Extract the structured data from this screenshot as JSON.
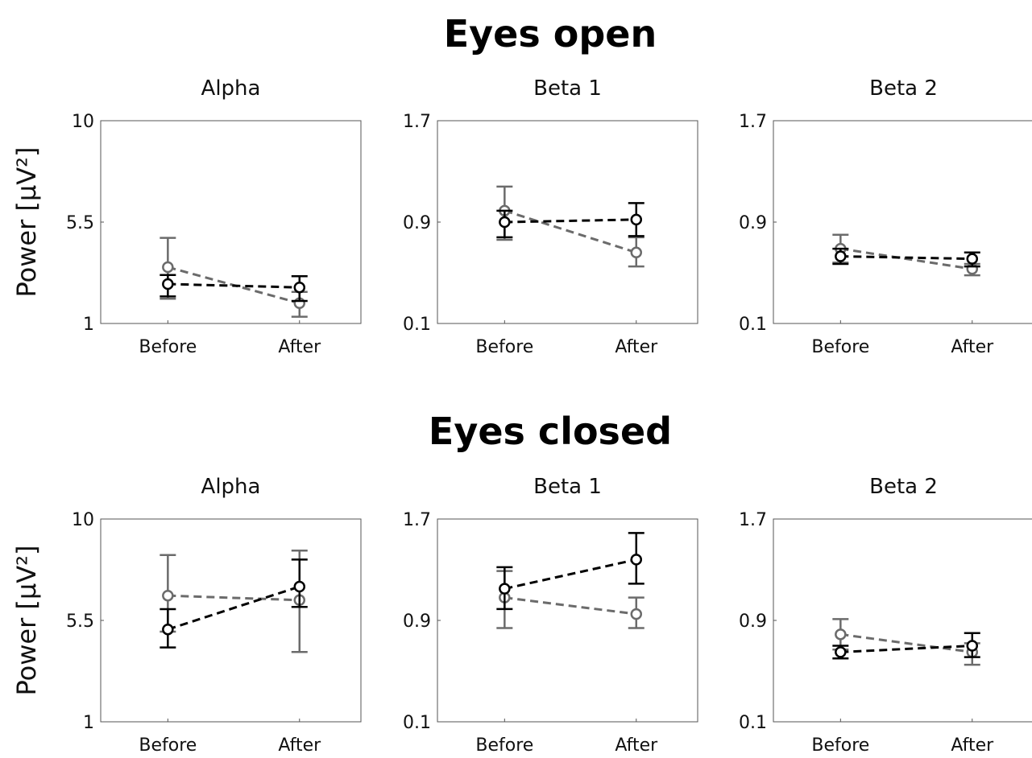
{
  "sections": [
    {
      "title": "Eyes open"
    },
    {
      "title": "Eyes closed"
    }
  ],
  "colors": {
    "group_a": "#000000",
    "group_b": "#6b6b6b"
  },
  "chart_data": [
    {
      "type": "line",
      "section": "Eyes open",
      "title": "Alpha",
      "ylabel": "Power [μV²]",
      "categories": [
        "Before",
        "After"
      ],
      "ylim": [
        1,
        10
      ],
      "yticks": [
        1,
        5.5,
        10
      ],
      "ytick_labels": [
        "1",
        "5.5",
        "10"
      ],
      "series": [
        {
          "color": "group_a",
          "values": [
            2.75,
            2.6
          ],
          "err_low": [
            2.2,
            2.0
          ],
          "err_high": [
            3.15,
            3.1
          ]
        },
        {
          "color": "group_b",
          "values": [
            3.5,
            1.9
          ],
          "err_low": [
            2.1,
            1.3
          ],
          "err_high": [
            4.8,
            2.4
          ]
        }
      ]
    },
    {
      "type": "line",
      "section": "Eyes open",
      "title": "Beta 1",
      "ylabel": "",
      "categories": [
        "Before",
        "After"
      ],
      "ylim": [
        0.1,
        1.7
      ],
      "yticks": [
        0.1,
        0.9,
        1.7
      ],
      "ytick_labels": [
        "0.1",
        "0.9",
        "1.7"
      ],
      "series": [
        {
          "color": "group_a",
          "values": [
            0.9,
            0.92
          ],
          "err_low": [
            0.78,
            0.79
          ],
          "err_high": [
            0.99,
            1.05
          ]
        },
        {
          "color": "group_b",
          "values": [
            0.99,
            0.66
          ],
          "err_low": [
            0.76,
            0.55
          ],
          "err_high": [
            1.18,
            0.78
          ]
        }
      ]
    },
    {
      "type": "line",
      "section": "Eyes open",
      "title": "Beta 2",
      "ylabel": "",
      "categories": [
        "Before",
        "After"
      ],
      "ylim": [
        0.1,
        1.7
      ],
      "yticks": [
        0.1,
        0.9,
        1.7
      ],
      "ytick_labels": [
        "0.1",
        "0.9",
        "1.7"
      ],
      "series": [
        {
          "color": "group_a",
          "values": [
            0.63,
            0.61
          ],
          "err_low": [
            0.57,
            0.55
          ],
          "err_high": [
            0.69,
            0.66
          ]
        },
        {
          "color": "group_b",
          "values": [
            0.69,
            0.53
          ],
          "err_low": [
            0.58,
            0.48
          ],
          "err_high": [
            0.8,
            0.57
          ]
        }
      ]
    },
    {
      "type": "line",
      "section": "Eyes closed",
      "title": "Alpha",
      "ylabel": "Power [μV²]",
      "categories": [
        "Before",
        "After"
      ],
      "ylim": [
        1,
        10
      ],
      "yticks": [
        1,
        5.5,
        10
      ],
      "ytick_labels": [
        "1",
        "5.5",
        "10"
      ],
      "series": [
        {
          "color": "group_a",
          "values": [
            5.1,
            7.0
          ],
          "err_low": [
            4.3,
            6.1
          ],
          "err_high": [
            6.0,
            8.2
          ]
        },
        {
          "color": "group_b",
          "values": [
            6.6,
            6.4
          ],
          "err_low": [
            5.0,
            4.1
          ],
          "err_high": [
            8.4,
            8.6
          ]
        }
      ]
    },
    {
      "type": "line",
      "section": "Eyes closed",
      "title": "Beta 1",
      "ylabel": "",
      "categories": [
        "Before",
        "After"
      ],
      "ylim": [
        0.1,
        1.7
      ],
      "yticks": [
        0.1,
        0.9,
        1.7
      ],
      "ytick_labels": [
        "0.1",
        "0.9",
        "1.7"
      ],
      "series": [
        {
          "color": "group_a",
          "values": [
            1.15,
            1.38
          ],
          "err_low": [
            0.99,
            1.19
          ],
          "err_high": [
            1.32,
            1.59
          ]
        },
        {
          "color": "group_b",
          "values": [
            1.08,
            0.95
          ],
          "err_low": [
            0.84,
            0.84
          ],
          "err_high": [
            1.29,
            1.08
          ]
        }
      ]
    },
    {
      "type": "line",
      "section": "Eyes closed",
      "title": "Beta 2",
      "ylabel": "",
      "categories": [
        "Before",
        "After"
      ],
      "ylim": [
        0.1,
        1.7
      ],
      "yticks": [
        0.1,
        0.9,
        1.7
      ],
      "ytick_labels": [
        "0.1",
        "0.9",
        "1.7"
      ],
      "series": [
        {
          "color": "group_a",
          "values": [
            0.65,
            0.7
          ],
          "err_low": [
            0.6,
            0.61
          ],
          "err_high": [
            0.7,
            0.8
          ]
        },
        {
          "color": "group_b",
          "values": [
            0.79,
            0.65
          ],
          "err_low": [
            0.67,
            0.55
          ],
          "err_high": [
            0.91,
            0.72
          ]
        }
      ]
    }
  ]
}
